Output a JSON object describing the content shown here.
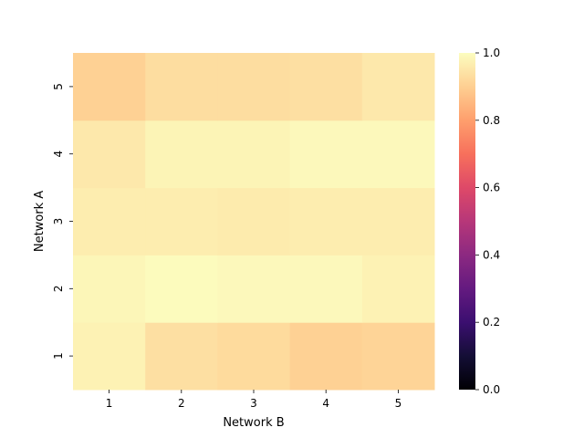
{
  "chart_data": {
    "type": "heatmap",
    "title": "",
    "xlabel": "Network B",
    "ylabel": "Network A",
    "x_categories": [
      "1",
      "2",
      "3",
      "4",
      "5"
    ],
    "y_categories": [
      "1",
      "2",
      "3",
      "4",
      "5"
    ],
    "values": [
      [
        0.975,
        0.935,
        0.925,
        0.905,
        0.91
      ],
      [
        0.985,
        0.995,
        0.99,
        0.99,
        0.975
      ],
      [
        0.965,
        0.965,
        0.96,
        0.965,
        0.965
      ],
      [
        0.955,
        0.98,
        0.98,
        0.99,
        0.99
      ],
      [
        0.905,
        0.93,
        0.93,
        0.935,
        0.955
      ]
    ],
    "colormap": "magma",
    "vmin": 0.0,
    "vmax": 1.0,
    "colorbar_ticks": [
      "0.0",
      "0.2",
      "0.4",
      "0.6",
      "0.8",
      "1.0"
    ],
    "grid": false
  }
}
